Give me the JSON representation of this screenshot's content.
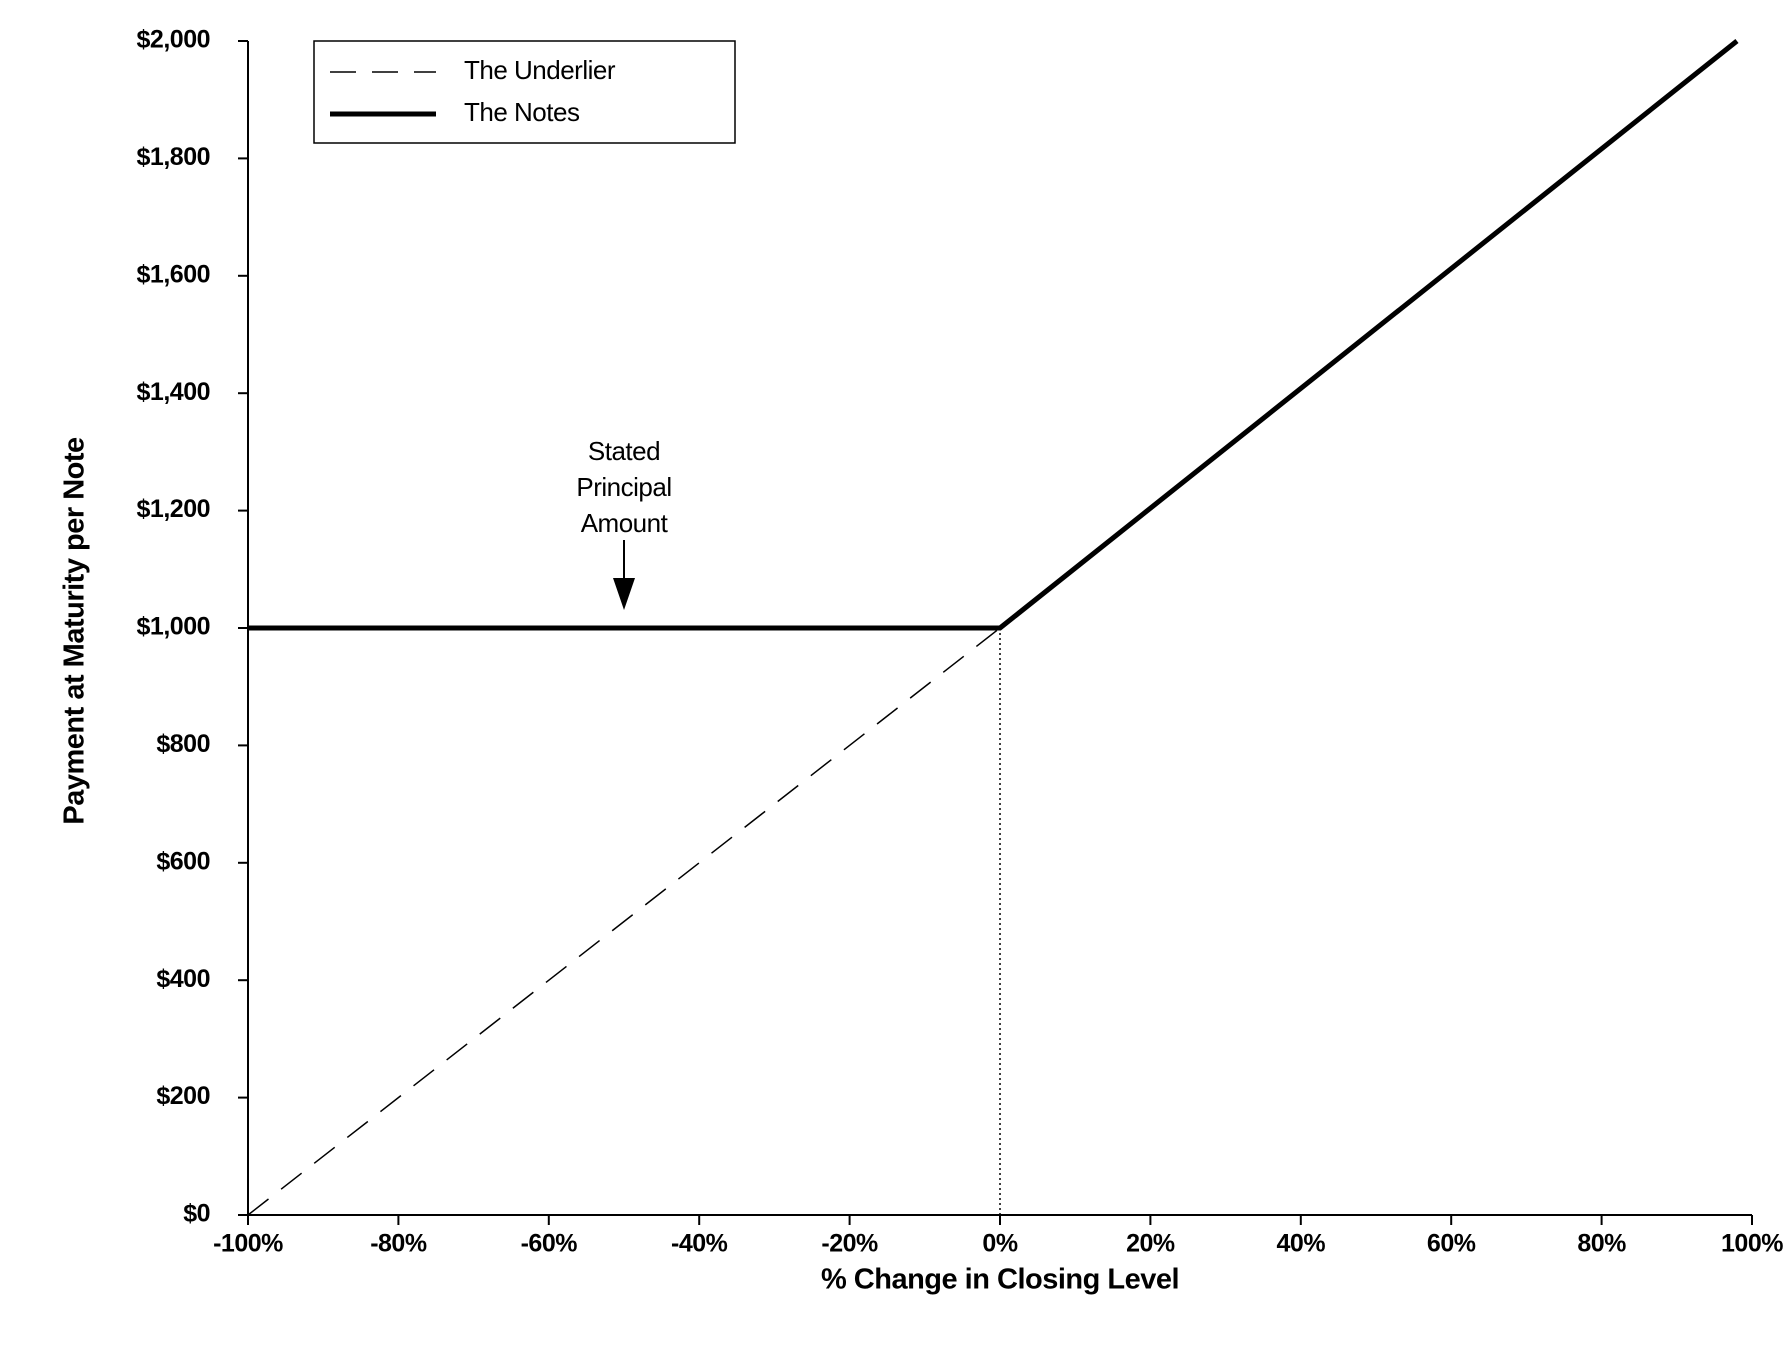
{
  "chart_data": {
    "type": "line",
    "x_label": "% Change in Closing Level",
    "y_label": "Payment at Maturity per Note",
    "xlim": [
      -100,
      100
    ],
    "ylim": [
      0,
      2000
    ],
    "xticks": [
      {
        "value": -100,
        "label": "-100%"
      },
      {
        "value": -80,
        "label": "-80%"
      },
      {
        "value": -60,
        "label": "-60%"
      },
      {
        "value": -40,
        "label": "-40%"
      },
      {
        "value": -20,
        "label": "-20%"
      },
      {
        "value": 0,
        "label": "0%"
      },
      {
        "value": 20,
        "label": "20%"
      },
      {
        "value": 40,
        "label": "40%"
      },
      {
        "value": 60,
        "label": "60%"
      },
      {
        "value": 80,
        "label": "80%"
      },
      {
        "value": 100,
        "label": "100%"
      }
    ],
    "yticks": [
      {
        "value": 0,
        "label": "$0"
      },
      {
        "value": 200,
        "label": "$200"
      },
      {
        "value": 400,
        "label": "$400"
      },
      {
        "value": 600,
        "label": "$600"
      },
      {
        "value": 800,
        "label": "$800"
      },
      {
        "value": 1000,
        "label": "$1,000"
      },
      {
        "value": 1200,
        "label": "$1,200"
      },
      {
        "value": 1400,
        "label": "$1,400"
      },
      {
        "value": 1600,
        "label": "$1,600"
      },
      {
        "value": 1800,
        "label": "$1,800"
      },
      {
        "value": 2000,
        "label": "$2,000"
      }
    ],
    "legend": "upper-left",
    "series": [
      {
        "name": "The Underlier",
        "color": "#000000",
        "style": "dashed",
        "x": [
          -100,
          0
        ],
        "values": [
          0,
          1000
        ]
      },
      {
        "name": "The Notes",
        "color": "#000000",
        "style": "solid",
        "x": [
          -100,
          0,
          98
        ],
        "values": [
          1000,
          1000,
          2000
        ]
      }
    ],
    "annotation": {
      "text": [
        "Stated",
        "Principal",
        "Amount"
      ],
      "x": -50,
      "y": 1000
    }
  }
}
